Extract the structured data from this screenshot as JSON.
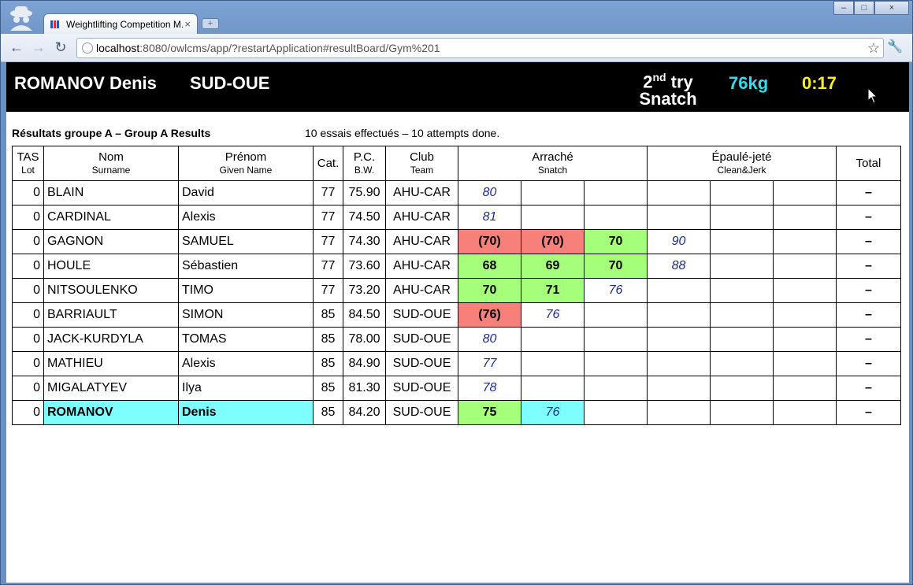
{
  "browser": {
    "tab_title": "Weightlifting Competition M...",
    "url_host": "localhost",
    "url_rest": ":8080/owlcms/app/?restartApplication#resultBoard/Gym%201"
  },
  "banner": {
    "name": "ROMANOV Denis",
    "team": "SUD-OUE",
    "try_num": "2",
    "try_suffix": "nd",
    "try_word": " try",
    "lift": "Snatch",
    "weight": "76kg",
    "clock": "0:17"
  },
  "group": {
    "title": "Résultats groupe A – Group A Results",
    "attempts": "10 essais effectués – 10 attempts done."
  },
  "headers": {
    "tas": "TAS",
    "lot": "Lot",
    "nom": "Nom",
    "surname": "Surname",
    "prenom": "Prénom",
    "given": "Given Name",
    "cat": "Cat.",
    "pc": "P.C.",
    "bw": "B.W.",
    "club": "Club",
    "team": "Team",
    "arrache": "Arraché",
    "snatch": "Snatch",
    "epaule": "Épaulé-jeté",
    "cj": "Clean&Jerk",
    "total": "Total"
  },
  "rows": [
    {
      "lot": "0",
      "surname": "BLAIN",
      "given": "David",
      "cat": "77",
      "bw": "75.90",
      "club": "AHU-CAR",
      "cells": [
        {
          "t": "80",
          "s": "req"
        },
        {
          "t": "",
          "s": ""
        },
        {
          "t": "",
          "s": ""
        },
        {
          "t": "",
          "s": ""
        },
        {
          "t": "",
          "s": ""
        },
        {
          "t": "",
          "s": ""
        }
      ],
      "total": "–"
    },
    {
      "lot": "0",
      "surname": "CARDINAL",
      "given": "Alexis",
      "cat": "77",
      "bw": "74.50",
      "club": "AHU-CAR",
      "cells": [
        {
          "t": "81",
          "s": "req"
        },
        {
          "t": "",
          "s": ""
        },
        {
          "t": "",
          "s": ""
        },
        {
          "t": "",
          "s": ""
        },
        {
          "t": "",
          "s": ""
        },
        {
          "t": "",
          "s": ""
        }
      ],
      "total": "–"
    },
    {
      "lot": "0",
      "surname": "GAGNON",
      "given": "SAMUEL",
      "cat": "77",
      "bw": "74.30",
      "club": "AHU-CAR",
      "cells": [
        {
          "t": "(70)",
          "s": "bad"
        },
        {
          "t": "(70)",
          "s": "bad"
        },
        {
          "t": "70",
          "s": "good"
        },
        {
          "t": "90",
          "s": "req"
        },
        {
          "t": "",
          "s": ""
        },
        {
          "t": "",
          "s": ""
        }
      ],
      "total": "–"
    },
    {
      "lot": "0",
      "surname": "HOULE",
      "given": "Sébastien",
      "cat": "77",
      "bw": "73.60",
      "club": "AHU-CAR",
      "cells": [
        {
          "t": "68",
          "s": "good"
        },
        {
          "t": "69",
          "s": "good"
        },
        {
          "t": "70",
          "s": "good"
        },
        {
          "t": "88",
          "s": "req"
        },
        {
          "t": "",
          "s": ""
        },
        {
          "t": "",
          "s": ""
        }
      ],
      "total": "–"
    },
    {
      "lot": "0",
      "surname": "NITSOULENKO",
      "given": "TIMO",
      "cat": "77",
      "bw": "73.20",
      "club": "AHU-CAR",
      "cells": [
        {
          "t": "70",
          "s": "good"
        },
        {
          "t": "71",
          "s": "good"
        },
        {
          "t": "76",
          "s": "req"
        },
        {
          "t": "",
          "s": ""
        },
        {
          "t": "",
          "s": ""
        },
        {
          "t": "",
          "s": ""
        }
      ],
      "total": "–"
    },
    {
      "lot": "0",
      "surname": "BARRIAULT",
      "given": "SIMON",
      "cat": "85",
      "bw": "84.50",
      "club": "SUD-OUE",
      "cells": [
        {
          "t": "(76)",
          "s": "bad"
        },
        {
          "t": "76",
          "s": "req"
        },
        {
          "t": "",
          "s": ""
        },
        {
          "t": "",
          "s": ""
        },
        {
          "t": "",
          "s": ""
        },
        {
          "t": "",
          "s": ""
        }
      ],
      "total": "–"
    },
    {
      "lot": "0",
      "surname": "JACK-KURDYLA",
      "given": "TOMAS",
      "cat": "85",
      "bw": "78.00",
      "club": "SUD-OUE",
      "cells": [
        {
          "t": "80",
          "s": "req"
        },
        {
          "t": "",
          "s": ""
        },
        {
          "t": "",
          "s": ""
        },
        {
          "t": "",
          "s": ""
        },
        {
          "t": "",
          "s": ""
        },
        {
          "t": "",
          "s": ""
        }
      ],
      "total": "–"
    },
    {
      "lot": "0",
      "surname": "MATHIEU",
      "given": "Alexis",
      "cat": "85",
      "bw": "84.90",
      "club": "SUD-OUE",
      "cells": [
        {
          "t": "77",
          "s": "req"
        },
        {
          "t": "",
          "s": ""
        },
        {
          "t": "",
          "s": ""
        },
        {
          "t": "",
          "s": ""
        },
        {
          "t": "",
          "s": ""
        },
        {
          "t": "",
          "s": ""
        }
      ],
      "total": "–"
    },
    {
      "lot": "0",
      "surname": "MIGALATYEV",
      "given": "Ilya",
      "cat": "85",
      "bw": "81.30",
      "club": "SUD-OUE",
      "cells": [
        {
          "t": "78",
          "s": "req"
        },
        {
          "t": "",
          "s": ""
        },
        {
          "t": "",
          "s": ""
        },
        {
          "t": "",
          "s": ""
        },
        {
          "t": "",
          "s": ""
        },
        {
          "t": "",
          "s": ""
        }
      ],
      "total": "–"
    },
    {
      "lot": "0",
      "surname": "ROMANOV",
      "given": "Denis",
      "cat": "85",
      "bw": "84.20",
      "club": "SUD-OUE",
      "current": true,
      "cells": [
        {
          "t": "75",
          "s": "good"
        },
        {
          "t": "76",
          "s": "req cur"
        },
        {
          "t": "",
          "s": ""
        },
        {
          "t": "",
          "s": ""
        },
        {
          "t": "",
          "s": ""
        },
        {
          "t": "",
          "s": ""
        }
      ],
      "total": "–"
    }
  ]
}
